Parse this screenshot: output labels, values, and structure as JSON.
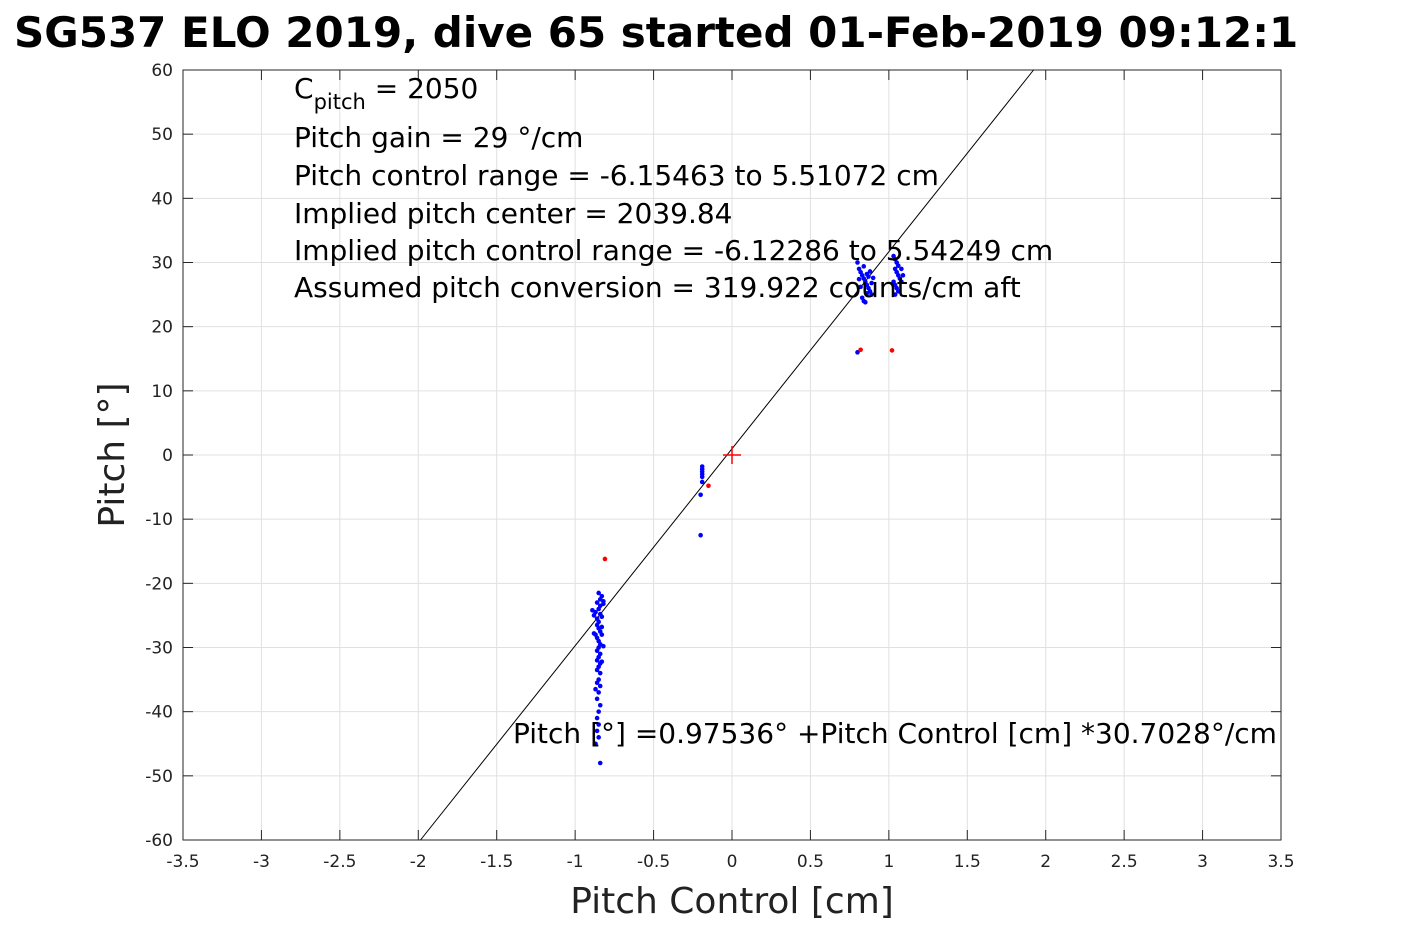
{
  "chart_data": {
    "type": "scatter",
    "title": "SG537 ELO 2019, dive 65 started 01-Feb-2019 09:12:1",
    "xlabel": "Pitch Control [cm]",
    "ylabel": "Pitch [°]",
    "xlim": [
      -3.5,
      3.5
    ],
    "ylim": [
      -60,
      60
    ],
    "xticks": [
      "-3.5",
      "-3",
      "-2.5",
      "-2",
      "-1.5",
      "-1",
      "-0.5",
      "0",
      "0.5",
      "1",
      "1.5",
      "2",
      "2.5",
      "3",
      "3.5"
    ],
    "yticks": [
      "-60",
      "-50",
      "-40",
      "-30",
      "-20",
      "-10",
      "0",
      "10",
      "20",
      "30",
      "40",
      "50",
      "60"
    ],
    "grid": true,
    "annotations": {
      "c_pitch_symbol": "C",
      "c_pitch_subscript": "pitch",
      "c_pitch_value": " = 2050",
      "pitch_gain": "Pitch gain = 29 °/cm",
      "pitch_control_range": "Pitch control range = -6.15463 to 5.51072 cm",
      "implied_center": "Implied pitch center = 2039.84",
      "implied_range": "Implied pitch control range = -6.12286 to 5.54249 cm",
      "assumed_conversion": "Assumed pitch conversion = 319.922 counts/cm aft",
      "fit_equation": "Pitch [°] =0.97536° +Pitch Control [cm] *30.7028°/cm"
    },
    "fit_line": {
      "intercept": 0.97536,
      "slope": 30.7028,
      "color": "#000000"
    },
    "center_marker": {
      "x": 0,
      "y": 0,
      "color": "#ff0000"
    },
    "series": [
      {
        "color": "#0000ff",
        "points": [
          [
            -0.85,
            -21.5
          ],
          [
            -0.84,
            -22.5
          ],
          [
            -0.83,
            -22
          ],
          [
            -0.86,
            -23
          ],
          [
            -0.85,
            -24
          ],
          [
            -0.84,
            -23.5
          ],
          [
            -0.87,
            -24.5
          ],
          [
            -0.88,
            -25
          ],
          [
            -0.86,
            -25.5
          ],
          [
            -0.85,
            -26
          ],
          [
            -0.84,
            -24.8
          ],
          [
            -0.83,
            -25.2
          ],
          [
            -0.89,
            -24.2
          ],
          [
            -0.82,
            -23.2
          ],
          [
            -0.86,
            -26.5
          ],
          [
            -0.85,
            -27
          ],
          [
            -0.84,
            -27.5
          ],
          [
            -0.83,
            -28
          ],
          [
            -0.86,
            -28.5
          ],
          [
            -0.85,
            -29
          ],
          [
            -0.84,
            -29.5
          ],
          [
            -0.85,
            -30
          ],
          [
            -0.86,
            -30.5
          ],
          [
            -0.84,
            -31
          ],
          [
            -0.85,
            -31.5
          ],
          [
            -0.86,
            -32
          ],
          [
            -0.84,
            -32.5
          ],
          [
            -0.85,
            -33
          ],
          [
            -0.86,
            -33.5
          ],
          [
            -0.84,
            -34
          ],
          [
            -0.85,
            -35
          ],
          [
            -0.86,
            -35.5
          ],
          [
            -0.84,
            -36
          ],
          [
            -0.85,
            -37
          ],
          [
            -0.86,
            -38
          ],
          [
            -0.84,
            -39
          ],
          [
            -0.85,
            -40
          ],
          [
            -0.86,
            -41
          ],
          [
            -0.85,
            -42
          ],
          [
            -0.86,
            -43
          ],
          [
            -0.85,
            -44
          ],
          [
            -0.87,
            -45
          ],
          [
            -0.84,
            -48
          ],
          [
            -0.82,
            -22.8
          ],
          [
            -0.83,
            -26.8
          ],
          [
            -0.87,
            -28
          ],
          [
            -0.88,
            -27.8
          ],
          [
            -0.82,
            -29.8
          ],
          [
            -0.83,
            -32.2
          ],
          [
            -0.87,
            -36.5
          ],
          [
            -0.19,
            -1.8
          ],
          [
            -0.19,
            -2.2
          ],
          [
            -0.19,
            -2.6
          ],
          [
            -0.19,
            -3
          ],
          [
            -0.19,
            -3.4
          ],
          [
            -0.19,
            -4.2
          ],
          [
            -0.2,
            -6.2
          ],
          [
            -0.2,
            -12.5
          ],
          [
            0.8,
            30
          ],
          [
            0.81,
            29
          ],
          [
            0.82,
            28.5
          ],
          [
            0.83,
            28
          ],
          [
            0.84,
            27.5
          ],
          [
            0.85,
            27
          ],
          [
            0.86,
            26.5
          ],
          [
            0.87,
            26
          ],
          [
            0.88,
            25.5
          ],
          [
            0.89,
            25
          ],
          [
            0.83,
            24.5
          ],
          [
            0.84,
            24
          ],
          [
            0.85,
            23.8
          ],
          [
            0.86,
            25.2
          ],
          [
            0.87,
            27.8
          ],
          [
            0.88,
            28.6
          ],
          [
            0.82,
            26.2
          ],
          [
            0.81,
            27.4
          ],
          [
            0.89,
            26.8
          ],
          [
            0.9,
            27.6
          ],
          [
            0.84,
            29.4
          ],
          [
            0.86,
            28.2
          ],
          [
            0.8,
            16
          ],
          [
            1.03,
            31
          ],
          [
            1.04,
            30.5
          ],
          [
            1.05,
            30
          ],
          [
            1.06,
            29.5
          ],
          [
            1.04,
            29
          ],
          [
            1.05,
            28.5
          ],
          [
            1.06,
            28
          ],
          [
            1.07,
            27.5
          ],
          [
            1.03,
            27
          ],
          [
            1.04,
            26.5
          ],
          [
            1.05,
            26
          ],
          [
            1.06,
            25.5
          ],
          [
            1.04,
            25
          ],
          [
            1.08,
            29
          ],
          [
            1.09,
            28
          ],
          [
            1.08,
            27
          ]
        ]
      },
      {
        "color": "#ff0000",
        "points": [
          [
            -0.81,
            -16.2
          ],
          [
            -0.15,
            -4.8
          ],
          [
            0.82,
            16.4
          ],
          [
            1.02,
            16.3
          ]
        ]
      }
    ]
  }
}
